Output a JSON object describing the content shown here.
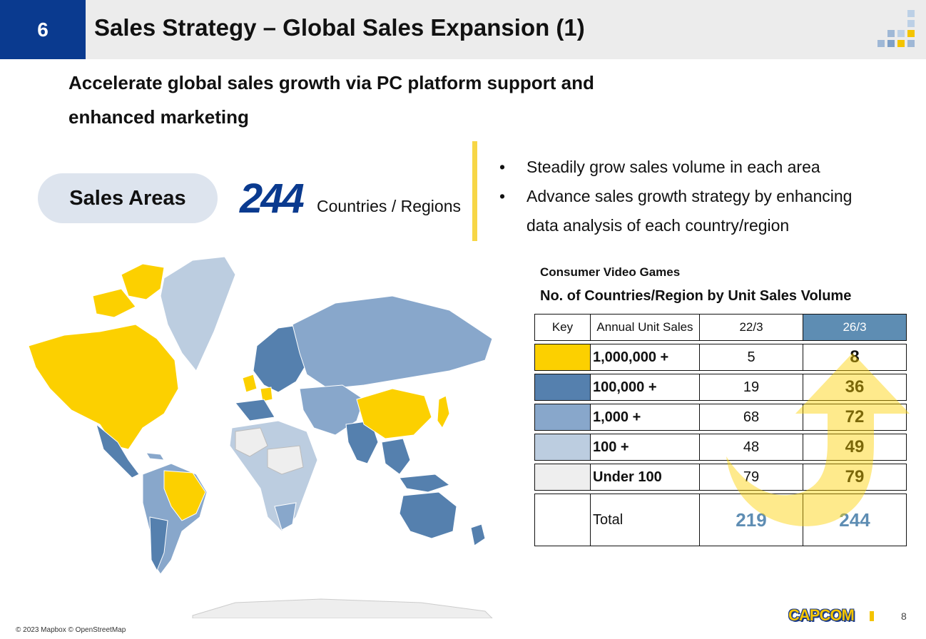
{
  "header": {
    "section_number": "6",
    "title": "Sales Strategy – Global Sales Expansion (1)"
  },
  "headline_line1": "Accelerate global sales growth via PC platform support and",
  "headline_line2": "enhanced marketing",
  "sales_areas": {
    "label": "Sales Areas",
    "count": "244",
    "unit": "Countries / Regions"
  },
  "bullets": [
    "Steadily grow sales volume in each area",
    "Advance sales growth strategy by enhancing data analysis of each country/region"
  ],
  "table": {
    "title1": "Consumer Video Games",
    "title2": "No. of Countries/Region by Unit Sales Volume",
    "headers": [
      "Key",
      "Annual Unit Sales",
      "22/3",
      "26/3"
    ],
    "rows": [
      {
        "label": "1,000,000 +",
        "a": "5",
        "b": "8",
        "color": "#fcd000"
      },
      {
        "label": "100,000 +",
        "a": "19",
        "b": "36",
        "color": "#5580ae"
      },
      {
        "label": "1,000 +",
        "a": "68",
        "b": "72",
        "color": "#88a7cb"
      },
      {
        "label": "100 +",
        "a": "48",
        "b": "49",
        "color": "#bccde0"
      },
      {
        "label": "Under 100",
        "a": "79",
        "b": "79",
        "color": "#eeeeee"
      }
    ],
    "total": {
      "label": "Total",
      "a": "219",
      "b": "244"
    }
  },
  "map_credit": "© 2023 Mapbox © OpenStreetMap",
  "footer": {
    "brand": "CAPCOM",
    "page_number": "8"
  },
  "colors": {
    "brand_blue": "#0a3a8f",
    "accent_yellow": "#fcd000",
    "highlight_header": "#5e8db3"
  }
}
